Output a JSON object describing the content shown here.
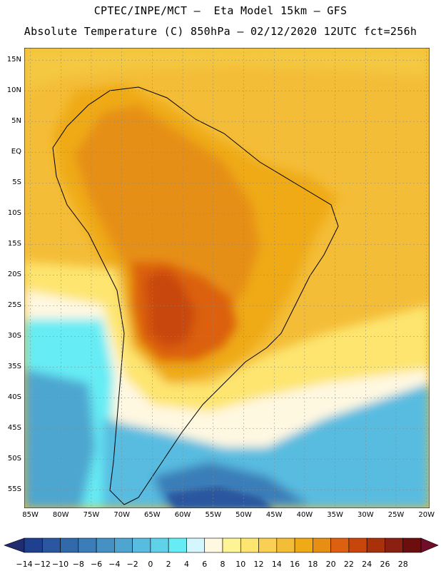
{
  "header": {
    "line1": "CPTEC/INPE/MCT –  Eta Model 15km – GFS",
    "line2": "Absolute Temperature (C) 850hPa – 02/12/2020 12UTC fct=256h"
  },
  "map": {
    "lat_labels": [
      "15N",
      "10N",
      "5N",
      "EQ",
      "5S",
      "10S",
      "15S",
      "20S",
      "25S",
      "30S",
      "35S",
      "40S",
      "45S",
      "50S",
      "55S"
    ],
    "lat_values": [
      15,
      10,
      5,
      0,
      -5,
      -10,
      -15,
      -20,
      -25,
      -30,
      -35,
      -40,
      -45,
      -50,
      -55
    ],
    "lon_labels": [
      "85W",
      "80W",
      "75W",
      "70W",
      "65W",
      "60W",
      "55W",
      "50W",
      "45W",
      "40W",
      "35W",
      "30W",
      "25W",
      "20W"
    ],
    "lon_values": [
      -85,
      -80,
      -75,
      -70,
      -65,
      -60,
      -55,
      -50,
      -45,
      -40,
      -35,
      -30,
      -25,
      -20
    ],
    "extent": {
      "lon_min": -86,
      "lon_max": -19.5,
      "lat_min": -58,
      "lat_max": 17
    }
  },
  "colorbar": {
    "labels": [
      "-14",
      "-12",
      "-10",
      "-8",
      "-6",
      "-4",
      "-2",
      "0",
      "2",
      "4",
      "6",
      "8",
      "10",
      "12",
      "14",
      "16",
      "18",
      "20",
      "22",
      "24",
      "26",
      "28"
    ],
    "colors": [
      "#1f3f8f",
      "#2a579f",
      "#3169aa",
      "#3b7db8",
      "#4691c4",
      "#4ea6d0",
      "#58bce0",
      "#5fd2ea",
      "#66ecf4",
      "#d4f6fd",
      "#fff8e1",
      "#fff495",
      "#fde570",
      "#f9d054",
      "#f4bd38",
      "#efaa16",
      "#e68f14",
      "#dc6010",
      "#c8460c",
      "#a8300a",
      "#892011",
      "#6c0e0e"
    ],
    "low_color": "#1f2d6e",
    "high_color": "#700e2a"
  }
}
